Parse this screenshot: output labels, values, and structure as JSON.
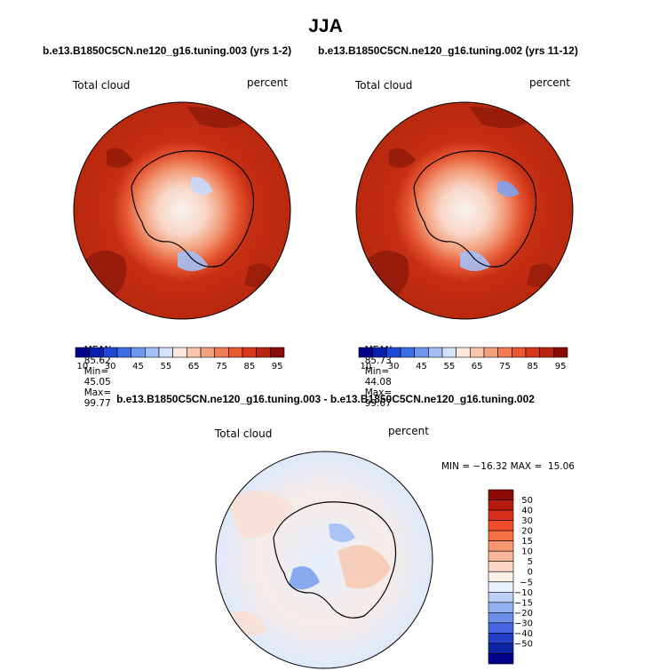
{
  "main_title": "JJA",
  "panels": [
    {
      "subtitle": "b.e13.B1850C5CN.ne120_g16.tuning.003 (yrs 1-2)",
      "variable": "Total cloud",
      "units": "percent",
      "stats": {
        "mean_label": "MEAN=",
        "mean": "85.62",
        "min_label": "Min=",
        "min": "45.05",
        "max_label": "Max=",
        "max": "99.77"
      }
    },
    {
      "subtitle": "b.e13.B1850C5CN.ne120_g16.tuning.002 (yrs 11-12)",
      "variable": "Total cloud",
      "units": "percent",
      "stats": {
        "mean_label": "MEAN=",
        "mean": "85.73",
        "min_label": "Min=",
        "min": "44.08",
        "max_label": "Max=",
        "max": "99.67"
      }
    }
  ],
  "diff_panel": {
    "subtitle": "b.e13.B1850C5CN.ne120_g16.tuning.003 - b.e13.B1850C5CN.ne120_g16.tuning.002",
    "variable": "Total cloud",
    "units": "percent",
    "minmax": "MIN = −16.32 MAX =  15.06"
  },
  "colorbar_abs": {
    "ticks": [
      "10",
      "30",
      "45",
      "55",
      "65",
      "75",
      "85",
      "95"
    ],
    "colors": [
      "#00008b",
      "#0a1fb0",
      "#1f49d6",
      "#3a6ee8",
      "#6e98f0",
      "#a3bff5",
      "#d3e2f9",
      "#fbe7dc",
      "#f7c6ad",
      "#f4a07f",
      "#f27c57",
      "#ea5731",
      "#d8371a",
      "#bb2410",
      "#8b0a05"
    ]
  },
  "colorbar_diff": {
    "ticks": [
      "50",
      "40",
      "30",
      "20",
      "15",
      "10",
      "5",
      "0",
      "−5",
      "−10",
      "−15",
      "−20",
      "−30",
      "−40",
      "−50"
    ],
    "colors": [
      "#8b0a05",
      "#b51b0c",
      "#d8301a",
      "#f04d2a",
      "#f57245",
      "#f79670",
      "#f8b59a",
      "#fbd6c6",
      "#fdeee6",
      "#e8f0fb",
      "#bcd0f6",
      "#94b2f1",
      "#6c8fea",
      "#4566e0",
      "#2440c8",
      "#0c23a6",
      "#00008b"
    ]
  }
}
